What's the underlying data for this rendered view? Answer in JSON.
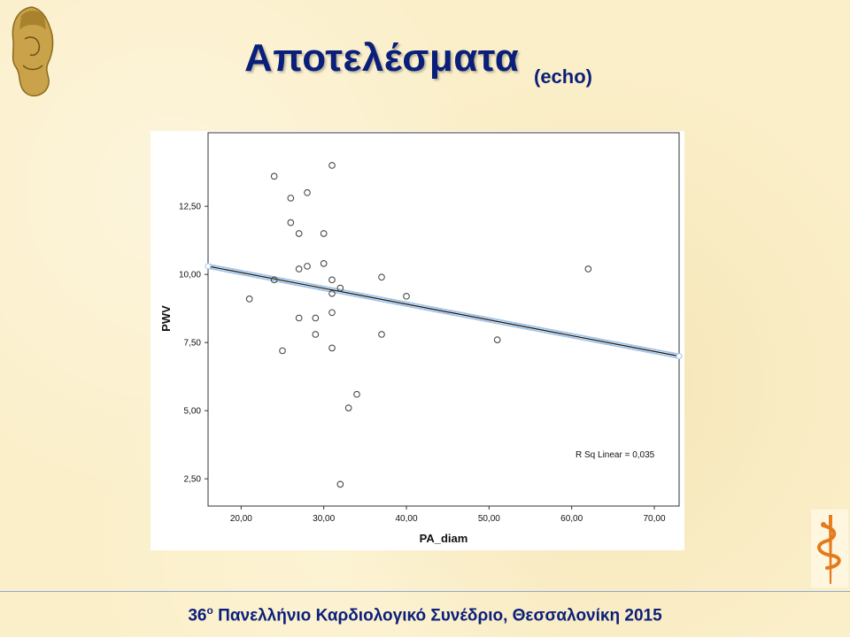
{
  "slide": {
    "title": "Αποτελέσματα",
    "subtitle": "(echo)",
    "footer_number": "36",
    "footer_sup": "ο",
    "footer_text": " Πανελλήνιο Καρδιολογικό Συνέδριο, Θεσσαλονίκη 2015"
  },
  "icons": {
    "left_logo": "athena-head-icon",
    "right_logo": "asclepius-staff-icon"
  },
  "chart_data": {
    "type": "scatter",
    "xlabel": "PA_diam",
    "ylabel": "PWV",
    "xlim": [
      16,
      73
    ],
    "ylim": [
      1.5,
      15.2
    ],
    "x_ticks": [
      20,
      30,
      40,
      50,
      60,
      70
    ],
    "x_tick_labels": [
      "20,00",
      "30,00",
      "40,00",
      "50,00",
      "60,00",
      "70,00"
    ],
    "y_ticks": [
      2.5,
      5,
      7.5,
      10,
      12.5
    ],
    "y_tick_labels": [
      "2,50",
      "5,00",
      "7,50",
      "10,00",
      "12,50"
    ],
    "points": [
      {
        "x": 21,
        "y": 9.1
      },
      {
        "x": 24,
        "y": 13.6
      },
      {
        "x": 24,
        "y": 9.8
      },
      {
        "x": 25,
        "y": 7.2
      },
      {
        "x": 26,
        "y": 12.8
      },
      {
        "x": 26,
        "y": 11.9
      },
      {
        "x": 27,
        "y": 11.5
      },
      {
        "x": 27,
        "y": 10.2
      },
      {
        "x": 27,
        "y": 8.4
      },
      {
        "x": 28,
        "y": 13.0
      },
      {
        "x": 28,
        "y": 10.3
      },
      {
        "x": 29,
        "y": 8.4
      },
      {
        "x": 29,
        "y": 7.8
      },
      {
        "x": 30,
        "y": 11.5
      },
      {
        "x": 30,
        "y": 10.4
      },
      {
        "x": 31,
        "y": 14.0
      },
      {
        "x": 31,
        "y": 9.8
      },
      {
        "x": 31,
        "y": 9.3
      },
      {
        "x": 31,
        "y": 8.6
      },
      {
        "x": 31,
        "y": 7.3
      },
      {
        "x": 32,
        "y": 9.5
      },
      {
        "x": 32,
        "y": 2.3
      },
      {
        "x": 33,
        "y": 5.1
      },
      {
        "x": 34,
        "y": 5.6
      },
      {
        "x": 37,
        "y": 9.9
      },
      {
        "x": 37,
        "y": 7.8
      },
      {
        "x": 40,
        "y": 9.2
      },
      {
        "x": 51,
        "y": 7.6
      },
      {
        "x": 62,
        "y": 10.2
      }
    ],
    "fit_line": {
      "x": [
        16,
        73
      ],
      "y": [
        10.3,
        7.0
      ]
    },
    "annotation": "R Sq Linear = 0,035",
    "grid": false,
    "colors": {
      "marker": "#4a4a4a",
      "fit_line": "#1a1a1a",
      "fit_halo": "#9ec3e8"
    }
  }
}
